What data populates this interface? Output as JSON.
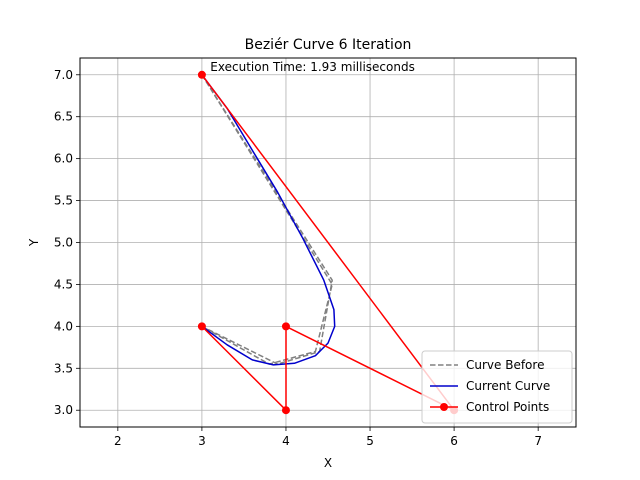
{
  "chart_data": {
    "type": "line",
    "title": "Beziér Curve 6 Iteration",
    "xlabel": "X",
    "ylabel": "Y",
    "xlim": [
      1.55,
      7.45
    ],
    "ylim": [
      2.8,
      7.2
    ],
    "xticks": [
      2,
      3,
      4,
      5,
      6,
      7
    ],
    "yticks": [
      3.0,
      3.5,
      4.0,
      4.5,
      5.0,
      5.5,
      6.0,
      6.5,
      7.0
    ],
    "ytick_labels": [
      "3.0",
      "3.5",
      "4.0",
      "4.5",
      "5.0",
      "5.5",
      "6.0",
      "6.5",
      "7.0"
    ],
    "grid": true,
    "legend_position": "lower-right",
    "annotation": {
      "text": "Execution Time: 1.93 milliseconds",
      "x": 3.1,
      "y": 7.0
    },
    "series": [
      {
        "name": "Curve Before",
        "style": "dashed",
        "color": "#808080",
        "points": [
          [
            3.0,
            7.0
          ],
          [
            4.55,
            4.5
          ],
          [
            4.35,
            3.7
          ],
          [
            3.8,
            3.55
          ],
          [
            3.0,
            4.0
          ],
          [
            3.9,
            3.55
          ],
          [
            4.4,
            3.7
          ],
          [
            4.55,
            4.55
          ],
          [
            3.0,
            7.0
          ]
        ]
      },
      {
        "name": "Current Curve",
        "style": "solid",
        "color": "#0000cc",
        "points": [
          [
            3.0,
            7.0
          ],
          [
            3.3,
            6.6
          ],
          [
            3.6,
            6.1
          ],
          [
            3.9,
            5.6
          ],
          [
            4.2,
            5.05
          ],
          [
            4.45,
            4.55
          ],
          [
            4.57,
            4.2
          ],
          [
            4.58,
            4.0
          ],
          [
            4.5,
            3.8
          ],
          [
            4.35,
            3.65
          ],
          [
            4.1,
            3.56
          ],
          [
            3.85,
            3.54
          ],
          [
            3.6,
            3.6
          ],
          [
            3.3,
            3.78
          ],
          [
            3.0,
            4.0
          ]
        ]
      },
      {
        "name": "Control Points",
        "style": "solid",
        "color": "#ff0000",
        "marker": "circle",
        "points": [
          [
            3.0,
            7.0
          ],
          [
            6.0,
            3.0
          ],
          [
            4.0,
            4.0
          ],
          [
            4.0,
            3.0
          ],
          [
            3.0,
            4.0
          ]
        ]
      }
    ]
  }
}
